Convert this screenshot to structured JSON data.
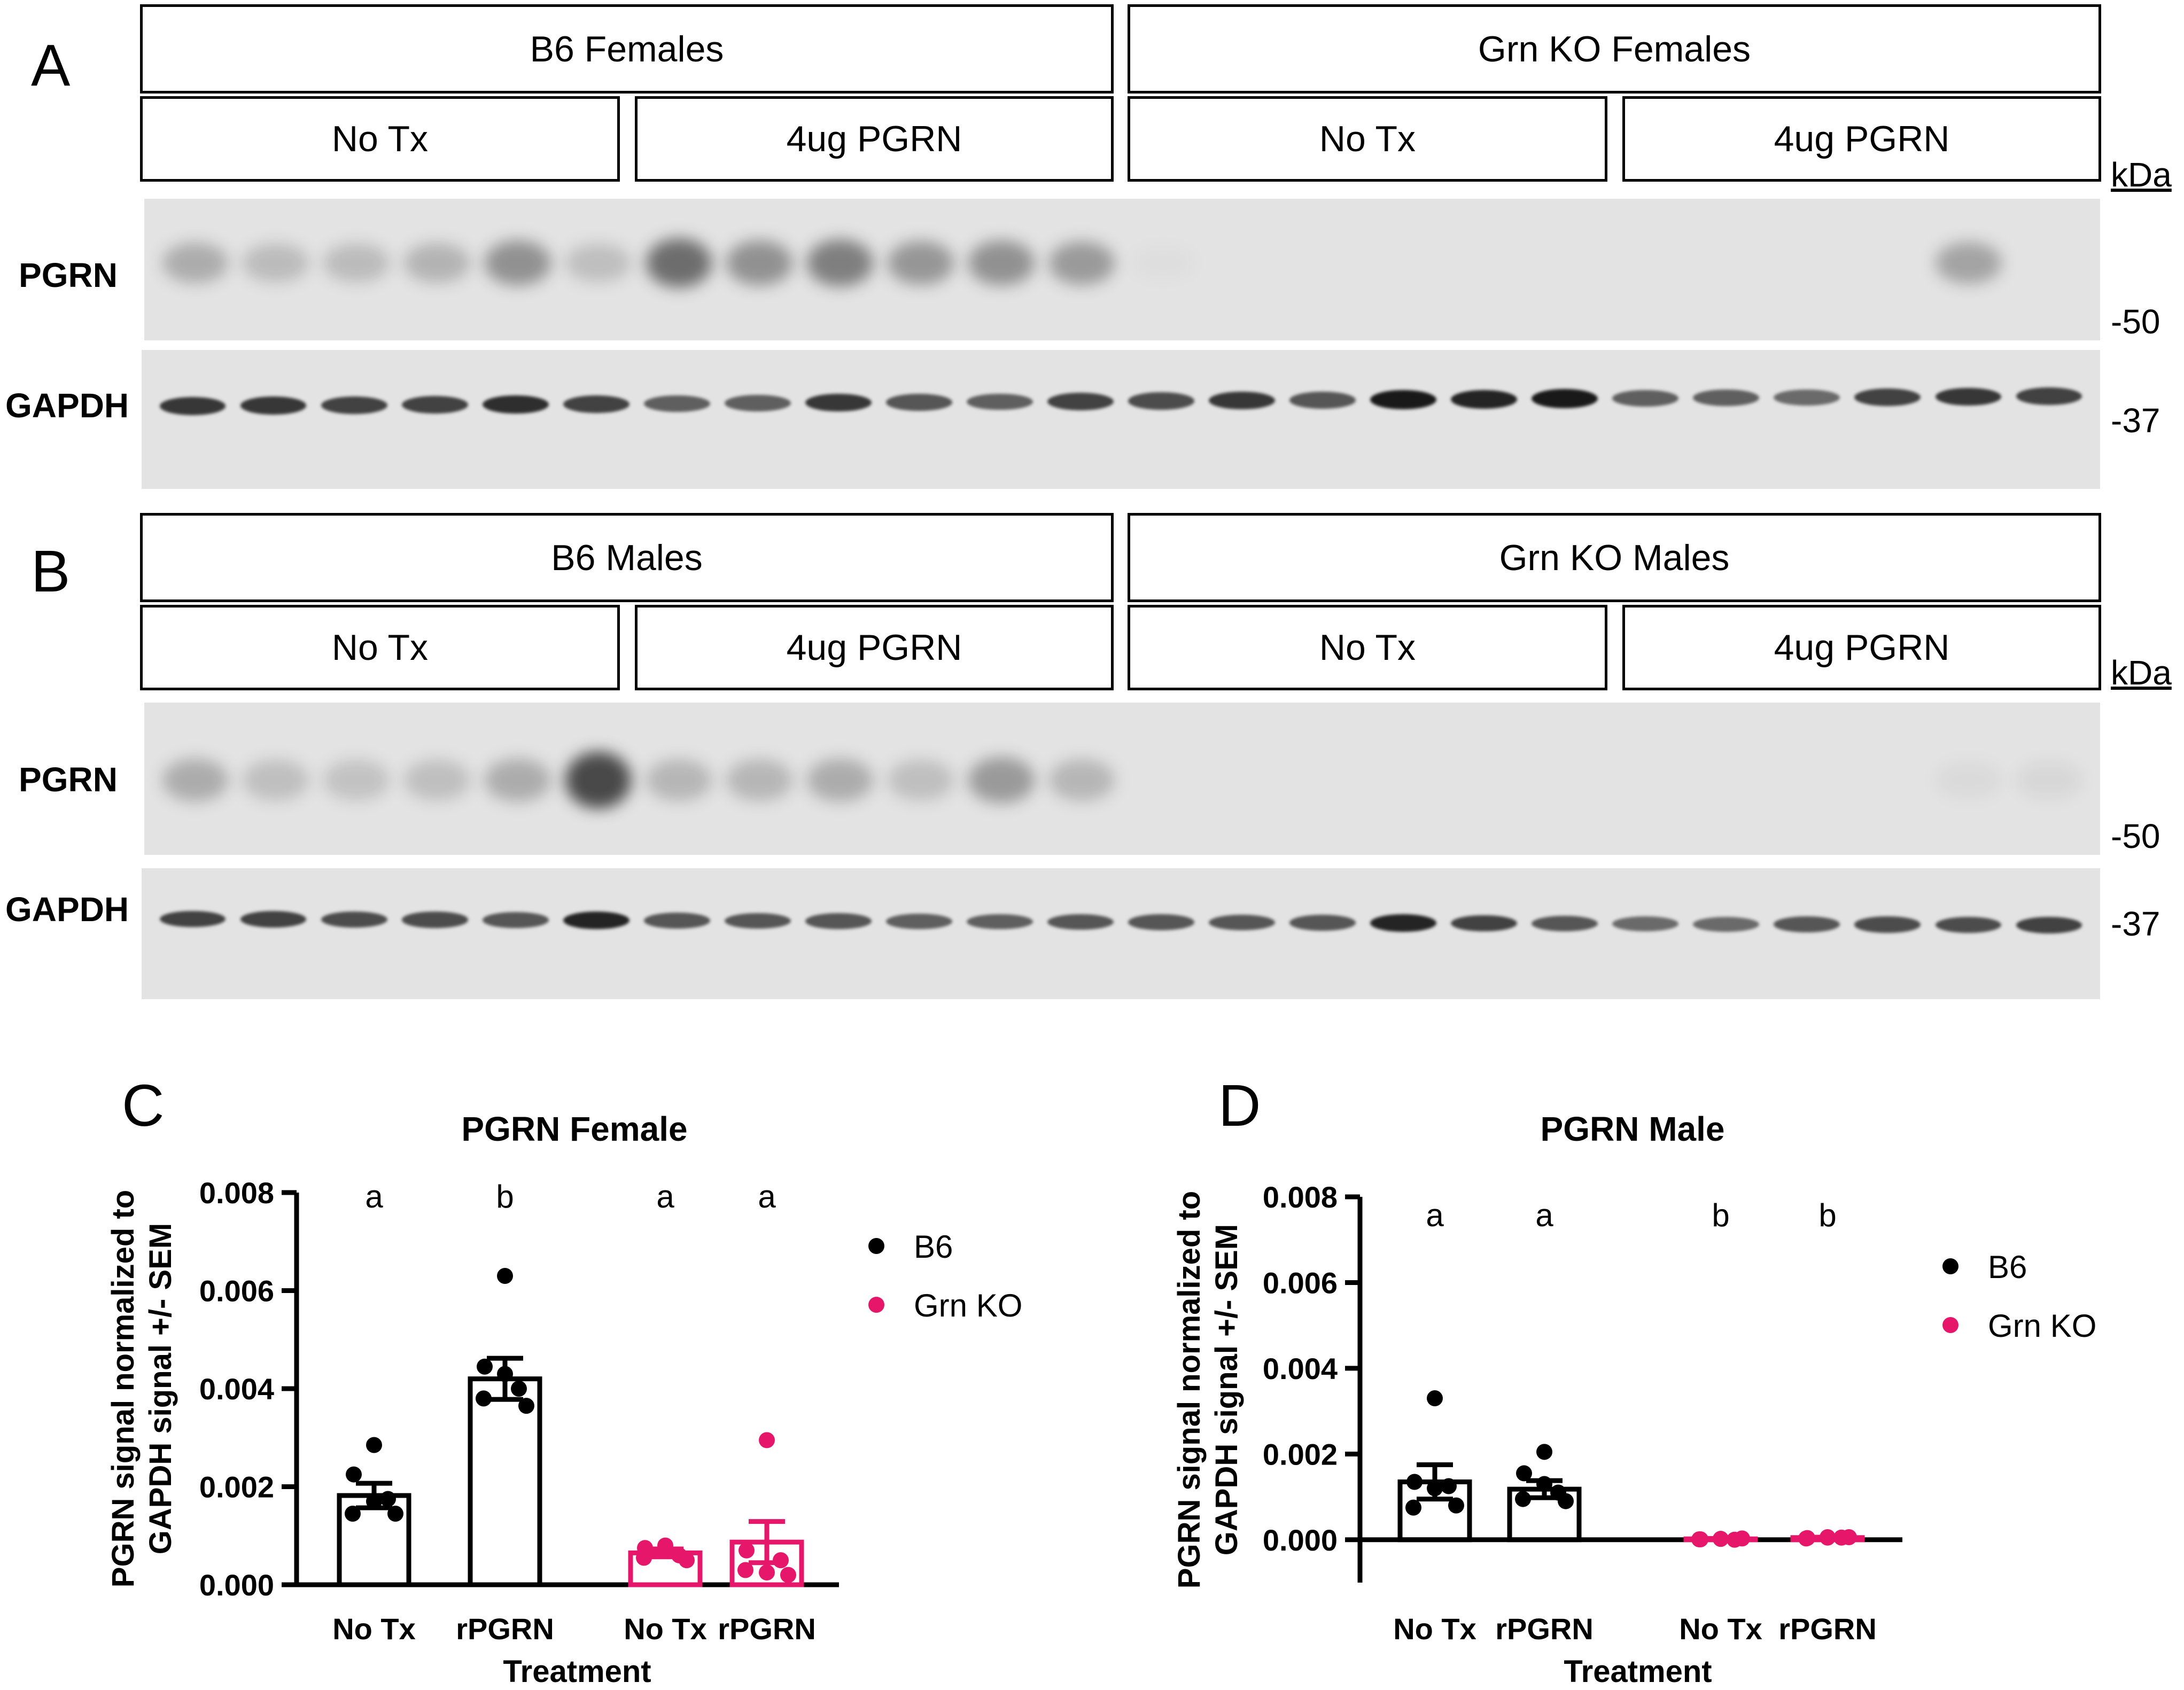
{
  "colors": {
    "b6": "#000000",
    "grnko": "#e6176b",
    "blot_bg": "#e3e3e3",
    "band": "#2a2a2a"
  },
  "panel_a": {
    "letter": "A",
    "groups": [
      "B6 Females",
      "Grn KO Females"
    ],
    "subgroups": [
      "No Tx",
      "4ug PGRN",
      "No Tx",
      "4ug PGRN"
    ],
    "kda_title": "kDa",
    "rows": [
      "PGRN",
      "GAPDH"
    ],
    "markers": [
      "-50",
      "-37"
    ],
    "pgrn_band_intensity": [
      0.3,
      0.22,
      0.22,
      0.26,
      0.45,
      0.2,
      0.65,
      0.45,
      0.55,
      0.42,
      0.45,
      0.4,
      0.02,
      0,
      0,
      0,
      0,
      0,
      0,
      0,
      0,
      0,
      0.35,
      0
    ],
    "gapdh_band_intensity": [
      0.85,
      0.85,
      0.8,
      0.8,
      0.9,
      0.8,
      0.65,
      0.65,
      0.85,
      0.7,
      0.65,
      0.8,
      0.75,
      0.85,
      0.7,
      1.0,
      0.95,
      1.0,
      0.65,
      0.65,
      0.6,
      0.8,
      0.85,
      0.8
    ]
  },
  "panel_b": {
    "letter": "B",
    "groups": [
      "B6 Males",
      "Grn KO Males"
    ],
    "subgroups": [
      "No Tx",
      "4ug PGRN",
      "No Tx",
      "4ug PGRN"
    ],
    "kda_title": "kDa",
    "rows": [
      "PGRN",
      "GAPDH"
    ],
    "markers": [
      "-50",
      "-37"
    ],
    "pgrn_band_intensity": [
      0.3,
      0.2,
      0.18,
      0.2,
      0.3,
      0.85,
      0.25,
      0.25,
      0.3,
      0.2,
      0.4,
      0.25,
      0,
      0,
      0,
      0,
      0,
      0,
      0,
      0,
      0,
      0,
      0.05,
      0.06
    ],
    "gapdh_band_intensity": [
      0.8,
      0.8,
      0.75,
      0.75,
      0.7,
      0.95,
      0.7,
      0.7,
      0.7,
      0.65,
      0.65,
      0.7,
      0.7,
      0.7,
      0.7,
      0.95,
      0.8,
      0.7,
      0.6,
      0.6,
      0.7,
      0.75,
      0.75,
      0.8
    ]
  },
  "chart_data": [
    {
      "letter": "C",
      "type": "bar",
      "title": "PGRN Female",
      "xlabel": "Treatment",
      "ylabel_line1": "PGRN signal normalized to",
      "ylabel_line2": "GAPDH signal +/- SEM",
      "ylim": [
        0,
        0.008
      ],
      "yticks": [
        "0.000",
        "0.002",
        "0.004",
        "0.006",
        "0.008"
      ],
      "categories": [
        "No Tx",
        "rPGRN",
        "No Tx",
        "rPGRN"
      ],
      "letters": [
        "a",
        "b",
        "a",
        "a"
      ],
      "legend": [
        "B6",
        "Grn KO"
      ],
      "bars": [
        {
          "genotype": "B6",
          "mean": 0.00182,
          "sem": 0.00025,
          "points": [
            0.00285,
            0.00225,
            0.00175,
            0.00145,
            0.00145,
            0.0017
          ]
        },
        {
          "genotype": "B6",
          "mean": 0.0042,
          "sem": 0.00042,
          "points": [
            0.0063,
            0.00445,
            0.004,
            0.0038,
            0.00365,
            0.0043
          ]
        },
        {
          "genotype": "Grn KO",
          "mean": 0.00065,
          "sem": 8e-05,
          "points": [
            0.0008,
            0.00075,
            0.0006,
            0.00055,
            0.0005,
            0.0007
          ]
        },
        {
          "genotype": "Grn KO",
          "mean": 0.00087,
          "sem": 0.00042,
          "points": [
            0.00295,
            0.0007,
            0.0005,
            0.0003,
            0.0002,
            0.00025
          ]
        }
      ]
    },
    {
      "letter": "D",
      "type": "bar",
      "title": "PGRN Male",
      "xlabel": "Treatment",
      "ylabel_line1": "PGRN signal normalized to",
      "ylabel_line2": "GAPDH signal +/- SEM",
      "ylim": [
        -0.001,
        0.008
      ],
      "yticks": [
        "0.000",
        "0.002",
        "0.004",
        "0.006",
        "0.008"
      ],
      "categories": [
        "No Tx",
        "rPGRN",
        "No Tx",
        "rPGRN"
      ],
      "letters": [
        "a",
        "a",
        "b",
        "b"
      ],
      "legend": [
        "B6",
        "Grn KO"
      ],
      "bars": [
        {
          "genotype": "B6",
          "mean": 0.00135,
          "sem": 0.0004,
          "points": [
            0.0033,
            0.00135,
            0.00125,
            0.00075,
            0.0008,
            0.0012
          ]
        },
        {
          "genotype": "B6",
          "mean": 0.00118,
          "sem": 0.0002,
          "points": [
            0.00205,
            0.00155,
            0.0011,
            0.00095,
            0.0009,
            0.0013
          ]
        },
        {
          "genotype": "Grn KO",
          "mean": 2e-05,
          "sem": 1e-05,
          "points": [
            2e-05,
            1e-05,
            0.0,
            1e-05,
            3e-05,
            2e-05
          ]
        },
        {
          "genotype": "Grn KO",
          "mean": 5e-05,
          "sem": 1e-05,
          "points": [
            6e-05,
            4e-05,
            5e-05,
            3e-05,
            6e-05,
            5e-05
          ]
        }
      ]
    }
  ]
}
